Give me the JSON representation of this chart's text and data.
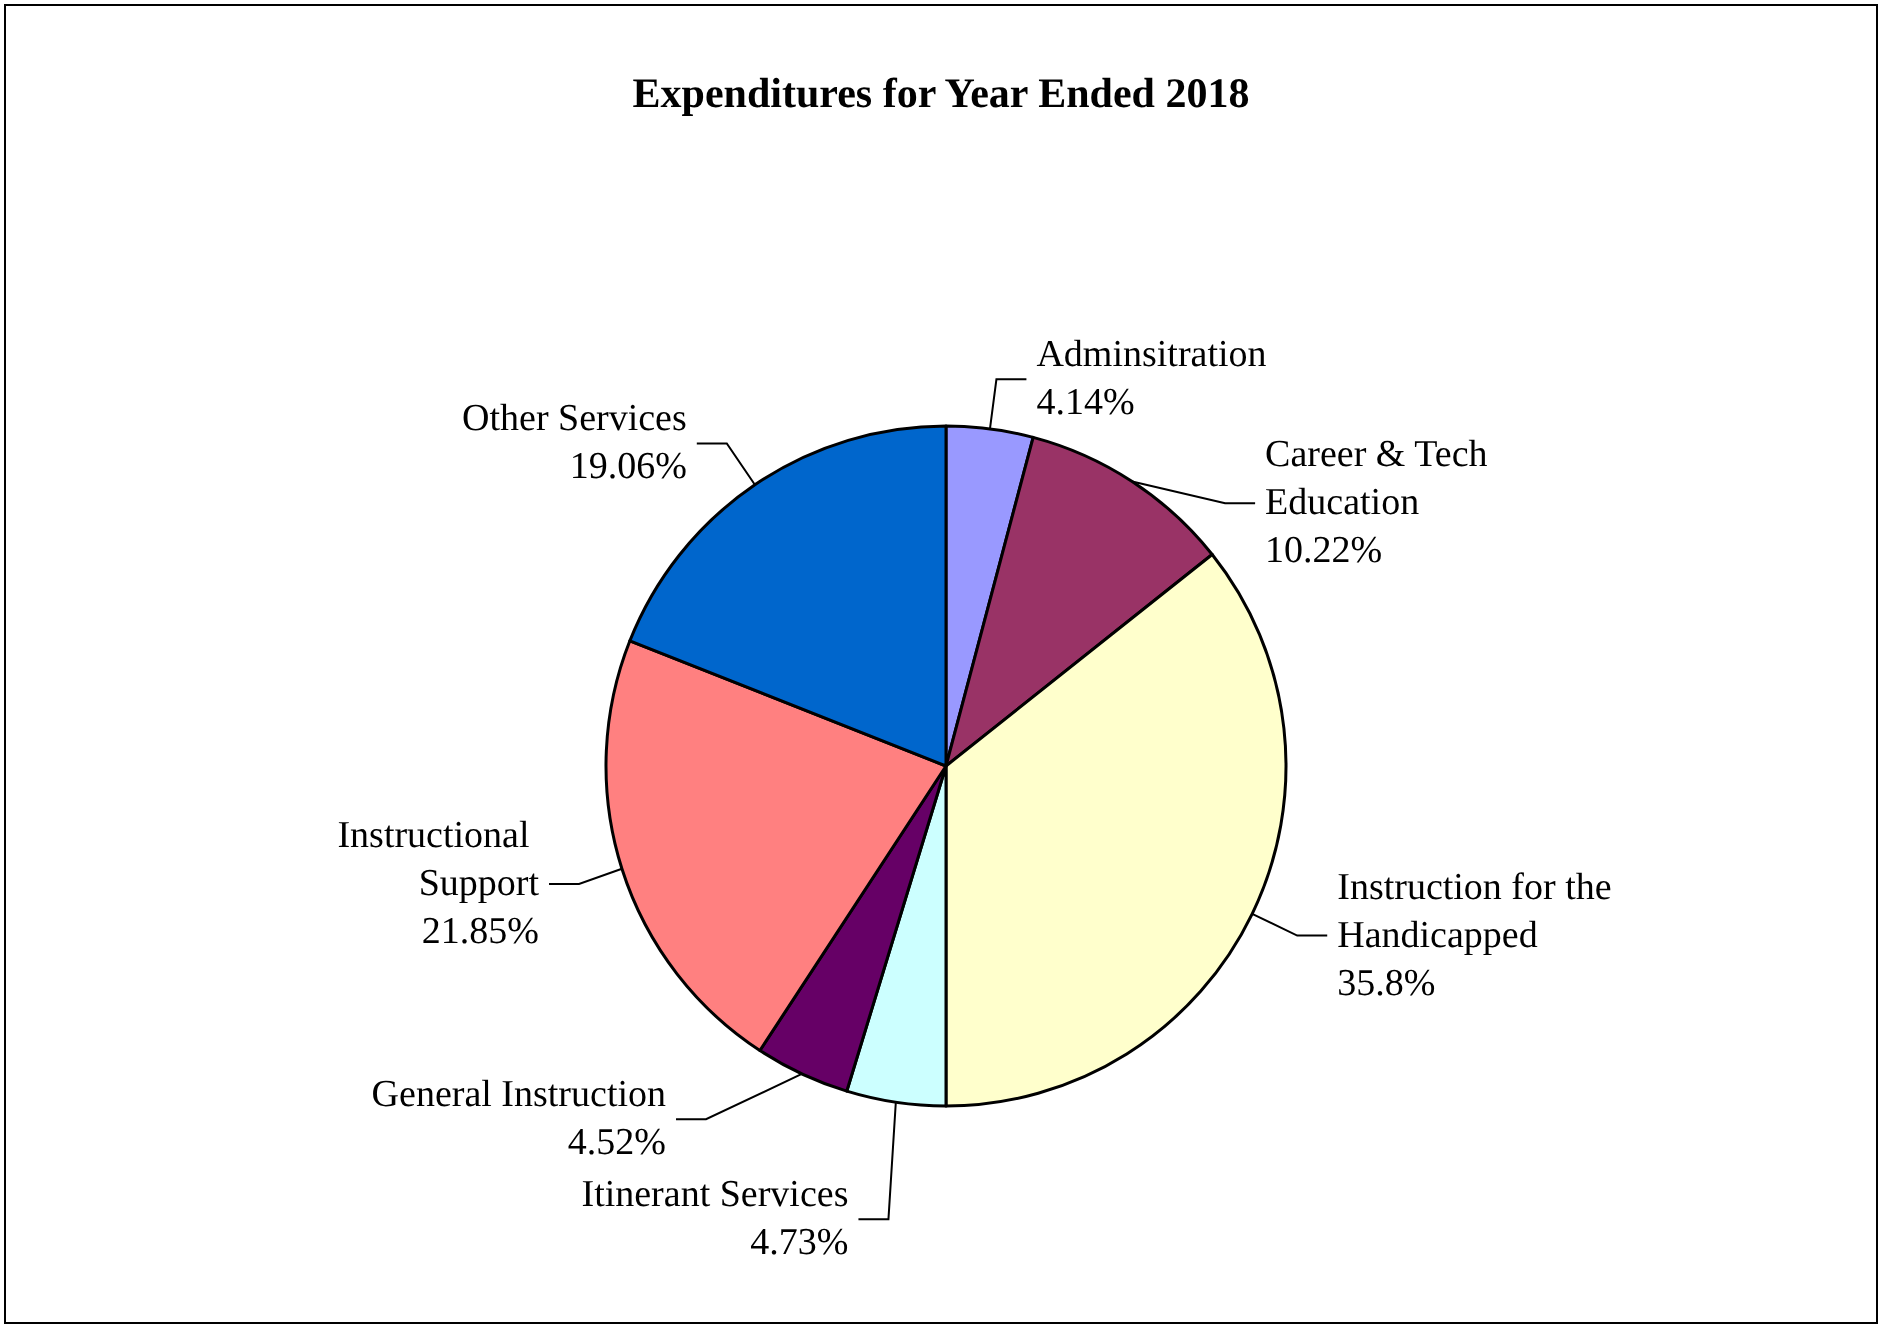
{
  "chart_data": {
    "type": "pie",
    "title": "Expenditures for Year Ended 2018",
    "categories": [
      "Adminsitration",
      "Career & Tech Education",
      "Instruction for the Handicapped",
      "Itinerant Services",
      "General Instruction",
      "Instructional Support",
      "Other Services"
    ],
    "values": [
      4.14,
      10.22,
      35.8,
      4.73,
      4.52,
      21.85,
      19.06
    ],
    "value_labels": [
      "4.14%",
      "10.22%",
      "35.8%",
      "4.73%",
      "4.52%",
      "21.85%",
      "19.06%"
    ],
    "colors": [
      "#9999ff",
      "#993366",
      "#ffffcc",
      "#ccffff",
      "#660066",
      "#ff8080",
      "#0066cc"
    ],
    "legend": false
  }
}
